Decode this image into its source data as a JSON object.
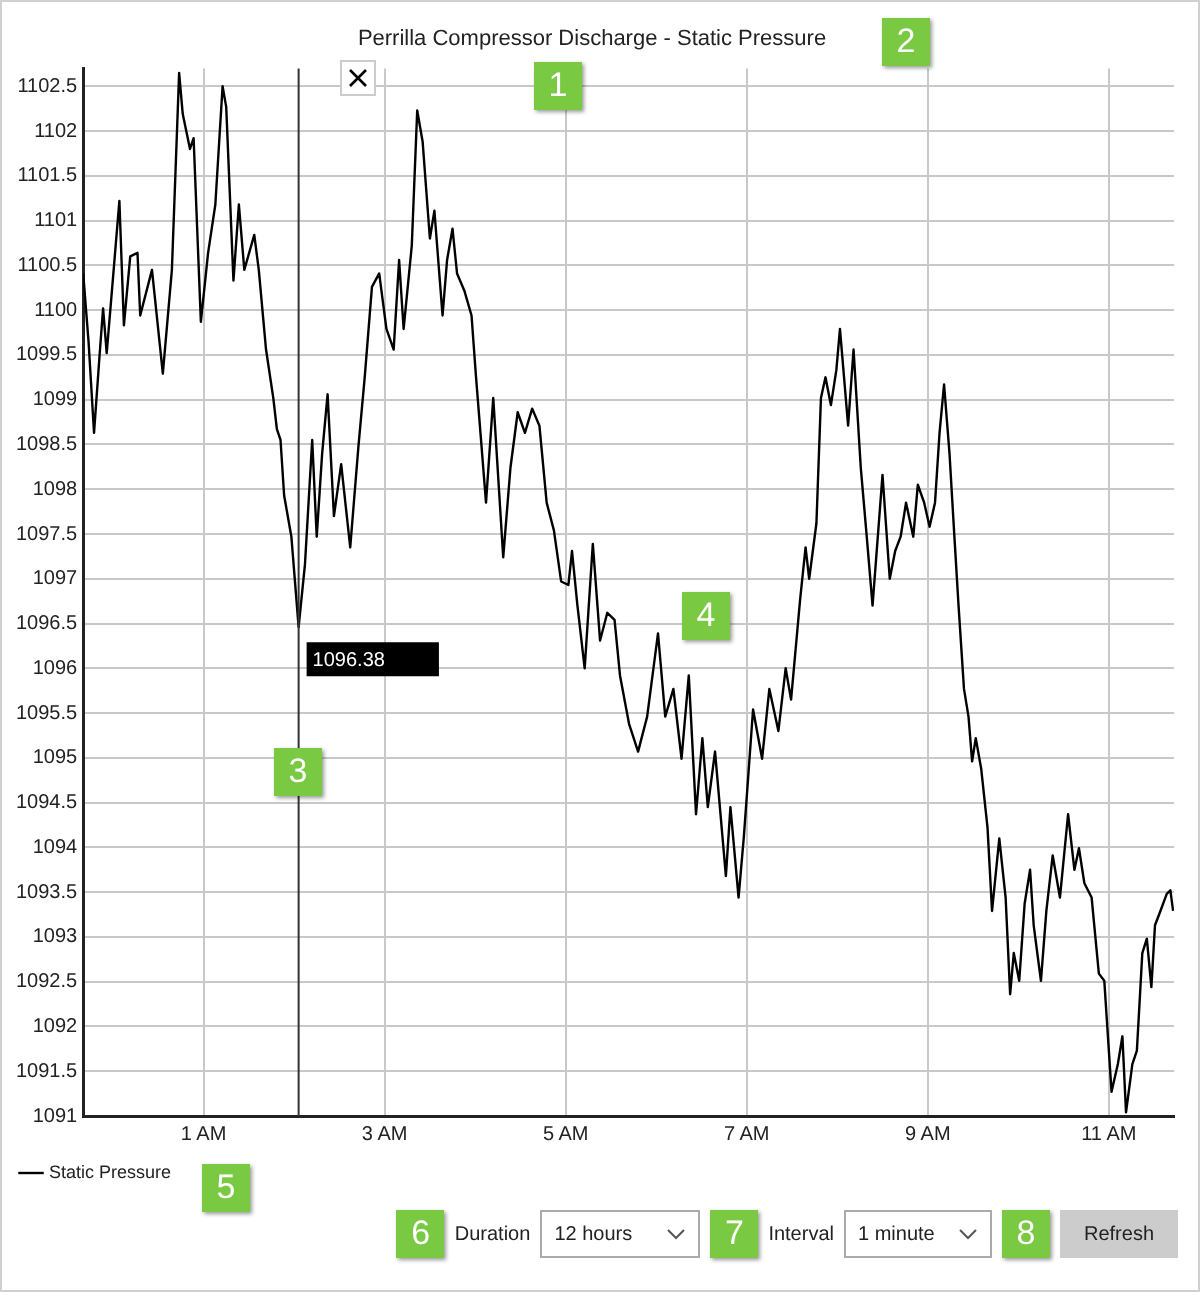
{
  "chart_data": {
    "type": "line",
    "title": "Perrilla Compressor Discharge - Static Pressure",
    "xlim": [
      -0.33,
      11.72
    ],
    "xticks": [
      {
        "value": 1,
        "label": "1 AM"
      },
      {
        "value": 3,
        "label": "3 AM"
      },
      {
        "value": 5,
        "label": "5 AM"
      },
      {
        "value": 7,
        "label": "7 AM"
      },
      {
        "value": 9,
        "label": "9 AM"
      },
      {
        "value": 11,
        "label": "11 AM"
      }
    ],
    "ylim": [
      1091,
      1102.7
    ],
    "yticks": [
      1091,
      1091.5,
      1092,
      1092.5,
      1093,
      1093.5,
      1094,
      1094.5,
      1095,
      1095.5,
      1096,
      1096.5,
      1097,
      1097.5,
      1098,
      1098.5,
      1099,
      1099.5,
      1100,
      1100.5,
      1101,
      1101.5,
      1102,
      1102.5
    ],
    "series": [
      {
        "name": "Static Pressure",
        "color": "#000000",
        "x": [
          -0.33,
          -0.27,
          -0.21,
          -0.15,
          -0.11,
          -0.07,
          0.01,
          0.07,
          0.12,
          0.19,
          0.27,
          0.3,
          0.43,
          0.55,
          0.65,
          0.73,
          0.77,
          0.85,
          0.89,
          0.97,
          1.05,
          1.13,
          1.21,
          1.25,
          1.33,
          1.39,
          1.45,
          1.56,
          1.61,
          1.69,
          1.77,
          1.81,
          1.85,
          1.89,
          1.97,
          2.05,
          2.12,
          2.2,
          2.25,
          2.31,
          2.37,
          2.44,
          2.52,
          2.62,
          2.71,
          2.78,
          2.86,
          2.94,
          3.02,
          3.1,
          3.16,
          3.21,
          3.3,
          3.36,
          3.42,
          3.5,
          3.55,
          3.64,
          3.69,
          3.75,
          3.8,
          3.88,
          3.96,
          4.01,
          4.12,
          4.2,
          4.31,
          4.39,
          4.47,
          4.55,
          4.63,
          4.71,
          4.79,
          4.87,
          4.95,
          5.03,
          5.07,
          5.13,
          5.21,
          5.3,
          5.38,
          5.46,
          5.54,
          5.6,
          5.7,
          5.8,
          5.9,
          6.02,
          6.1,
          6.19,
          6.28,
          6.36,
          6.44,
          6.51,
          6.57,
          6.65,
          6.77,
          6.82,
          6.91,
          6.97,
          7.07,
          7.17,
          7.25,
          7.35,
          7.43,
          7.49,
          7.59,
          7.65,
          7.69,
          7.77,
          7.82,
          7.87,
          7.93,
          7.99,
          8.03,
          8.12,
          8.18,
          8.26,
          8.32,
          8.39,
          8.5,
          8.58,
          8.64,
          8.7,
          8.76,
          8.84,
          8.89,
          8.96,
          9.02,
          9.08,
          9.13,
          9.18,
          9.24,
          9.29,
          9.34,
          9.4,
          9.45,
          9.49,
          9.53,
          9.59,
          9.66,
          9.71,
          9.79,
          9.86,
          9.91,
          9.95,
          10.01,
          10.07,
          10.13,
          10.17,
          10.25,
          10.31,
          10.38,
          10.46,
          10.55,
          10.62,
          10.67,
          10.73,
          10.81,
          10.89,
          10.95,
          11.03,
          11.1,
          11.15,
          11.19,
          11.26,
          11.31,
          11.37,
          11.42,
          11.47,
          11.51,
          11.57,
          11.64,
          11.68,
          11.71
        ],
        "values": [
          1100.41,
          1099.64,
          1098.63,
          1099.48,
          1100.02,
          1099.52,
          1100.49,
          1101.22,
          1099.83,
          1100.6,
          1100.64,
          1099.94,
          1100.45,
          1099.29,
          1100.45,
          1102.65,
          1102.19,
          1101.8,
          1101.92,
          1099.87,
          1100.64,
          1101.18,
          1102.5,
          1102.27,
          1100.33,
          1101.18,
          1100.45,
          1100.84,
          1100.45,
          1099.56,
          1099.02,
          1098.67,
          1098.55,
          1097.93,
          1097.47,
          1096.46,
          1097.16,
          1098.55,
          1097.47,
          1098.4,
          1099.06,
          1097.7,
          1098.28,
          1097.35,
          1098.47,
          1099.25,
          1100.26,
          1100.41,
          1099.79,
          1099.56,
          1100.56,
          1099.79,
          1100.72,
          1102.23,
          1101.88,
          1100.8,
          1101.11,
          1099.94,
          1100.56,
          1100.91,
          1100.41,
          1100.22,
          1099.94,
          1099.25,
          1097.85,
          1099.02,
          1097.24,
          1098.24,
          1098.86,
          1098.63,
          1098.9,
          1098.71,
          1097.85,
          1097.54,
          1096.97,
          1096.93,
          1097.31,
          1096.7,
          1096.0,
          1097.39,
          1096.31,
          1096.62,
          1096.54,
          1095.92,
          1095.38,
          1095.07,
          1095.46,
          1096.39,
          1095.46,
          1095.77,
          1094.99,
          1095.92,
          1094.37,
          1095.22,
          1094.45,
          1095.07,
          1093.68,
          1094.45,
          1093.44,
          1094.14,
          1095.54,
          1094.99,
          1095.77,
          1095.3,
          1096.0,
          1095.65,
          1096.77,
          1097.35,
          1097.0,
          1097.62,
          1099.02,
          1099.25,
          1098.94,
          1099.33,
          1099.79,
          1098.71,
          1099.56,
          1098.24,
          1097.54,
          1096.7,
          1098.16,
          1097.0,
          1097.31,
          1097.47,
          1097.85,
          1097.47,
          1098.05,
          1097.85,
          1097.58,
          1097.85,
          1098.63,
          1099.17,
          1098.4,
          1097.54,
          1096.7,
          1095.77,
          1095.46,
          1094.96,
          1095.22,
          1094.88,
          1094.22,
          1093.29,
          1094.1,
          1093.44,
          1092.36,
          1092.82,
          1092.51,
          1093.37,
          1093.75,
          1093.13,
          1092.51,
          1093.29,
          1093.91,
          1093.44,
          1094.37,
          1093.75,
          1093.99,
          1093.6,
          1093.44,
          1092.59,
          1092.51,
          1091.27,
          1091.58,
          1091.89,
          1091.04,
          1091.58,
          1091.73,
          1092.82,
          1092.98,
          1092.44,
          1093.13,
          1093.29,
          1093.48,
          1093.52,
          1093.29
        ]
      }
    ],
    "ref_lines": [
      {
        "axis": "x",
        "value": 2.05,
        "color": "#333333"
      }
    ],
    "grid": true,
    "legend": "bottom left",
    "marker": "none",
    "line_style": "solid",
    "annotations": [
      "Duration",
      "12 hours",
      "Interval",
      "1 minute",
      "Refresh",
      "1",
      "2",
      "3",
      "4",
      "5",
      "6",
      "7",
      "8",
      {
        "text": "1096.38",
        "x": 2.05,
        "y": 1096.38
      }
    ]
  }
}
